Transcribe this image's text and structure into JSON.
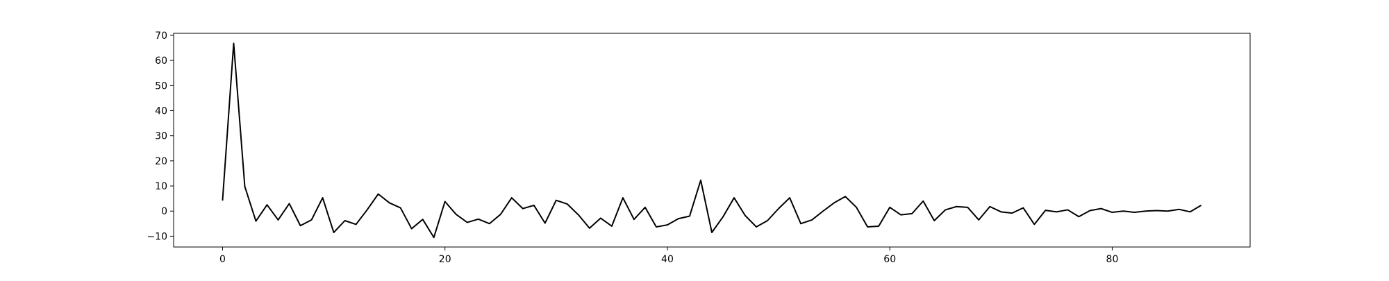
{
  "chart_data": {
    "type": "line",
    "title": "",
    "xlabel": "",
    "ylabel": "",
    "xlim": [
      -4.4,
      92.4
    ],
    "ylim": [
      -14.3,
      70.8
    ],
    "xticks": [
      0,
      20,
      40,
      60,
      80
    ],
    "yticks": [
      -10,
      0,
      10,
      20,
      30,
      40,
      50,
      60,
      70
    ],
    "grid": false,
    "legend": "none",
    "series": [
      {
        "name": "",
        "color": "#000000",
        "x": [
          0,
          1,
          2,
          3,
          4,
          5,
          6,
          7,
          8,
          9,
          10,
          11,
          12,
          13,
          14,
          15,
          16,
          17,
          18,
          19,
          20,
          21,
          22,
          23,
          24,
          25,
          26,
          27,
          28,
          29,
          30,
          31,
          32,
          33,
          34,
          35,
          36,
          37,
          38,
          39,
          40,
          41,
          42,
          43,
          44,
          45,
          46,
          47,
          48,
          49,
          50,
          51,
          52,
          53,
          54,
          55,
          56,
          57,
          58,
          59,
          60,
          61,
          62,
          63,
          64,
          65,
          66,
          67,
          68,
          69,
          70,
          71,
          72,
          73,
          74,
          75,
          76,
          77,
          78,
          79,
          80,
          81,
          82,
          83,
          84,
          85,
          86,
          87,
          88
        ],
        "values": [
          4.2,
          66.8,
          9.8,
          -4.0,
          2.5,
          -3.5,
          3.0,
          -5.8,
          -3.5,
          5.3,
          -8.5,
          -3.8,
          -5.3,
          0.5,
          6.8,
          3.3,
          1.3,
          -7.0,
          -3.3,
          -10.5,
          3.8,
          -1.3,
          -4.5,
          -3.2,
          -5.0,
          -1.3,
          5.3,
          1.0,
          2.3,
          -4.8,
          4.3,
          2.8,
          -1.5,
          -6.8,
          -2.8,
          -6.0,
          5.3,
          -3.3,
          1.5,
          -6.3,
          -5.5,
          -3.0,
          -2.0,
          12.3,
          -8.5,
          -2.3,
          5.3,
          -1.8,
          -6.3,
          -3.8,
          1.0,
          5.3,
          -5.0,
          -3.5,
          0.0,
          3.3,
          5.8,
          1.5,
          -6.3,
          -6.0,
          1.5,
          -1.5,
          -1.0,
          4.0,
          -3.8,
          0.5,
          1.8,
          1.5,
          -3.5,
          1.8,
          -0.3,
          -0.8,
          1.3,
          -5.3,
          0.3,
          -0.3,
          0.5,
          -2.2,
          0.2,
          1.0,
          -0.5,
          0.0,
          -0.5,
          0.0,
          0.2,
          0.0,
          0.7,
          -0.3,
          2.3
        ]
      }
    ]
  }
}
